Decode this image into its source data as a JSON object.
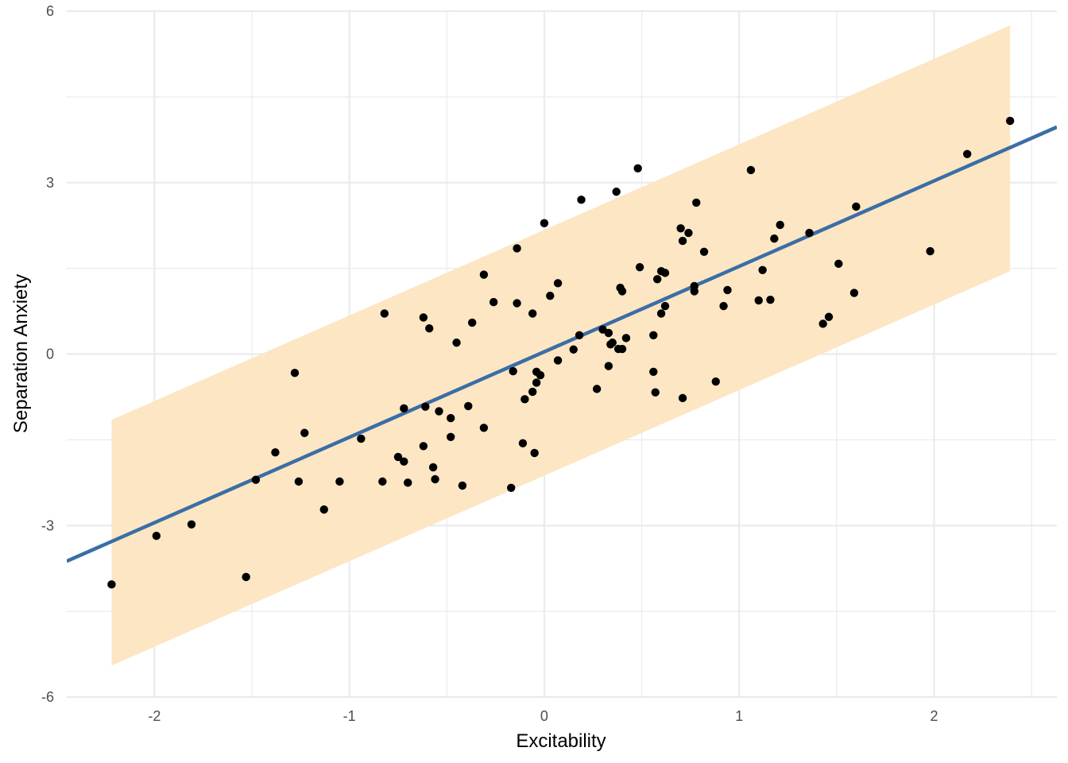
{
  "chart_data": {
    "type": "scatter",
    "title": "",
    "xlabel": "Excitability",
    "ylabel": "Separation Anxiety",
    "xlim": [
      -2.45,
      2.63
    ],
    "ylim": [
      -6.0,
      6.0
    ],
    "x_ticks": [
      -2,
      -1,
      0,
      1,
      2
    ],
    "x_tick_labels": [
      "-2",
      "-1",
      "0",
      "1",
      "2"
    ],
    "y_ticks": [
      -6,
      -3,
      0,
      3,
      6
    ],
    "y_tick_labels": [
      "-6",
      "-3",
      "0",
      "3",
      "6"
    ],
    "grid": true,
    "legend": "none",
    "colors": {
      "points": "#000000",
      "fit_line": "#3a6ea5",
      "band": "#fde6c4",
      "grid": "#ebebeb"
    },
    "fit_line": {
      "intercept": 0.04,
      "slope": 1.495
    },
    "prediction_band": {
      "x": [
        -2.22,
        2.39
      ],
      "lower": [
        -5.45,
        1.45
      ],
      "upper": [
        -1.15,
        5.75
      ]
    },
    "points": [
      [
        -2.22,
        -4.03
      ],
      [
        -1.99,
        -3.18
      ],
      [
        -1.81,
        -2.98
      ],
      [
        -1.53,
        -3.9
      ],
      [
        -1.48,
        -2.2
      ],
      [
        -1.38,
        -1.72
      ],
      [
        -1.28,
        -0.33
      ],
      [
        -1.26,
        -2.23
      ],
      [
        -1.23,
        -1.38
      ],
      [
        -1.13,
        -2.72
      ],
      [
        -1.05,
        -2.23
      ],
      [
        -0.94,
        -1.48
      ],
      [
        -0.83,
        -2.23
      ],
      [
        -0.82,
        0.71
      ],
      [
        -0.75,
        -1.8
      ],
      [
        -0.72,
        -1.88
      ],
      [
        -0.72,
        -0.95
      ],
      [
        -0.7,
        -2.25
      ],
      [
        -0.62,
        -1.61
      ],
      [
        -0.62,
        0.64
      ],
      [
        -0.61,
        -0.92
      ],
      [
        -0.59,
        0.45
      ],
      [
        -0.57,
        -1.98
      ],
      [
        -0.56,
        -2.19
      ],
      [
        -0.54,
        -1.0
      ],
      [
        -0.48,
        -1.45
      ],
      [
        -0.48,
        -1.12
      ],
      [
        -0.45,
        0.2
      ],
      [
        -0.42,
        -2.3
      ],
      [
        -0.39,
        -0.91
      ],
      [
        -0.37,
        0.55
      ],
      [
        -0.31,
        -1.29
      ],
      [
        -0.31,
        1.39
      ],
      [
        -0.26,
        0.91
      ],
      [
        -0.17,
        -2.34
      ],
      [
        -0.16,
        -0.3
      ],
      [
        -0.14,
        1.85
      ],
      [
        -0.14,
        0.89
      ],
      [
        -0.11,
        -1.56
      ],
      [
        -0.1,
        -0.79
      ],
      [
        -0.06,
        -0.66
      ],
      [
        -0.06,
        0.71
      ],
      [
        -0.05,
        -1.73
      ],
      [
        -0.04,
        -0.5
      ],
      [
        -0.04,
        -0.31
      ],
      [
        -0.02,
        -0.37
      ],
      [
        0.0,
        2.29
      ],
      [
        0.03,
        1.02
      ],
      [
        0.07,
        -0.11
      ],
      [
        0.07,
        1.24
      ],
      [
        0.15,
        0.08
      ],
      [
        0.18,
        0.33
      ],
      [
        0.19,
        2.7
      ],
      [
        0.27,
        -0.61
      ],
      [
        0.3,
        0.43
      ],
      [
        0.33,
        0.37
      ],
      [
        0.33,
        -0.21
      ],
      [
        0.34,
        0.17
      ],
      [
        0.35,
        0.2
      ],
      [
        0.37,
        2.84
      ],
      [
        0.38,
        0.09
      ],
      [
        0.39,
        1.16
      ],
      [
        0.4,
        0.09
      ],
      [
        0.4,
        1.1
      ],
      [
        0.42,
        0.28
      ],
      [
        0.48,
        3.25
      ],
      [
        0.49,
        1.52
      ],
      [
        0.56,
        0.33
      ],
      [
        0.56,
        -0.31
      ],
      [
        0.57,
        -0.67
      ],
      [
        0.58,
        1.31
      ],
      [
        0.6,
        1.45
      ],
      [
        0.6,
        0.71
      ],
      [
        0.62,
        1.42
      ],
      [
        0.62,
        0.84
      ],
      [
        0.7,
        2.2
      ],
      [
        0.71,
        1.98
      ],
      [
        0.71,
        -0.77
      ],
      [
        0.74,
        2.12
      ],
      [
        0.77,
        1.1
      ],
      [
        0.77,
        1.19
      ],
      [
        0.78,
        2.65
      ],
      [
        0.82,
        1.79
      ],
      [
        0.88,
        -0.48
      ],
      [
        0.92,
        0.84
      ],
      [
        0.94,
        1.12
      ],
      [
        1.06,
        3.22
      ],
      [
        1.1,
        0.94
      ],
      [
        1.12,
        1.47
      ],
      [
        1.16,
        0.95
      ],
      [
        1.18,
        2.02
      ],
      [
        1.21,
        2.26
      ],
      [
        1.36,
        2.12
      ],
      [
        1.43,
        0.53
      ],
      [
        1.46,
        0.65
      ],
      [
        1.51,
        1.58
      ],
      [
        1.59,
        1.07
      ],
      [
        1.6,
        2.58
      ],
      [
        1.98,
        1.8
      ],
      [
        2.17,
        3.5
      ],
      [
        2.39,
        4.08
      ]
    ]
  }
}
